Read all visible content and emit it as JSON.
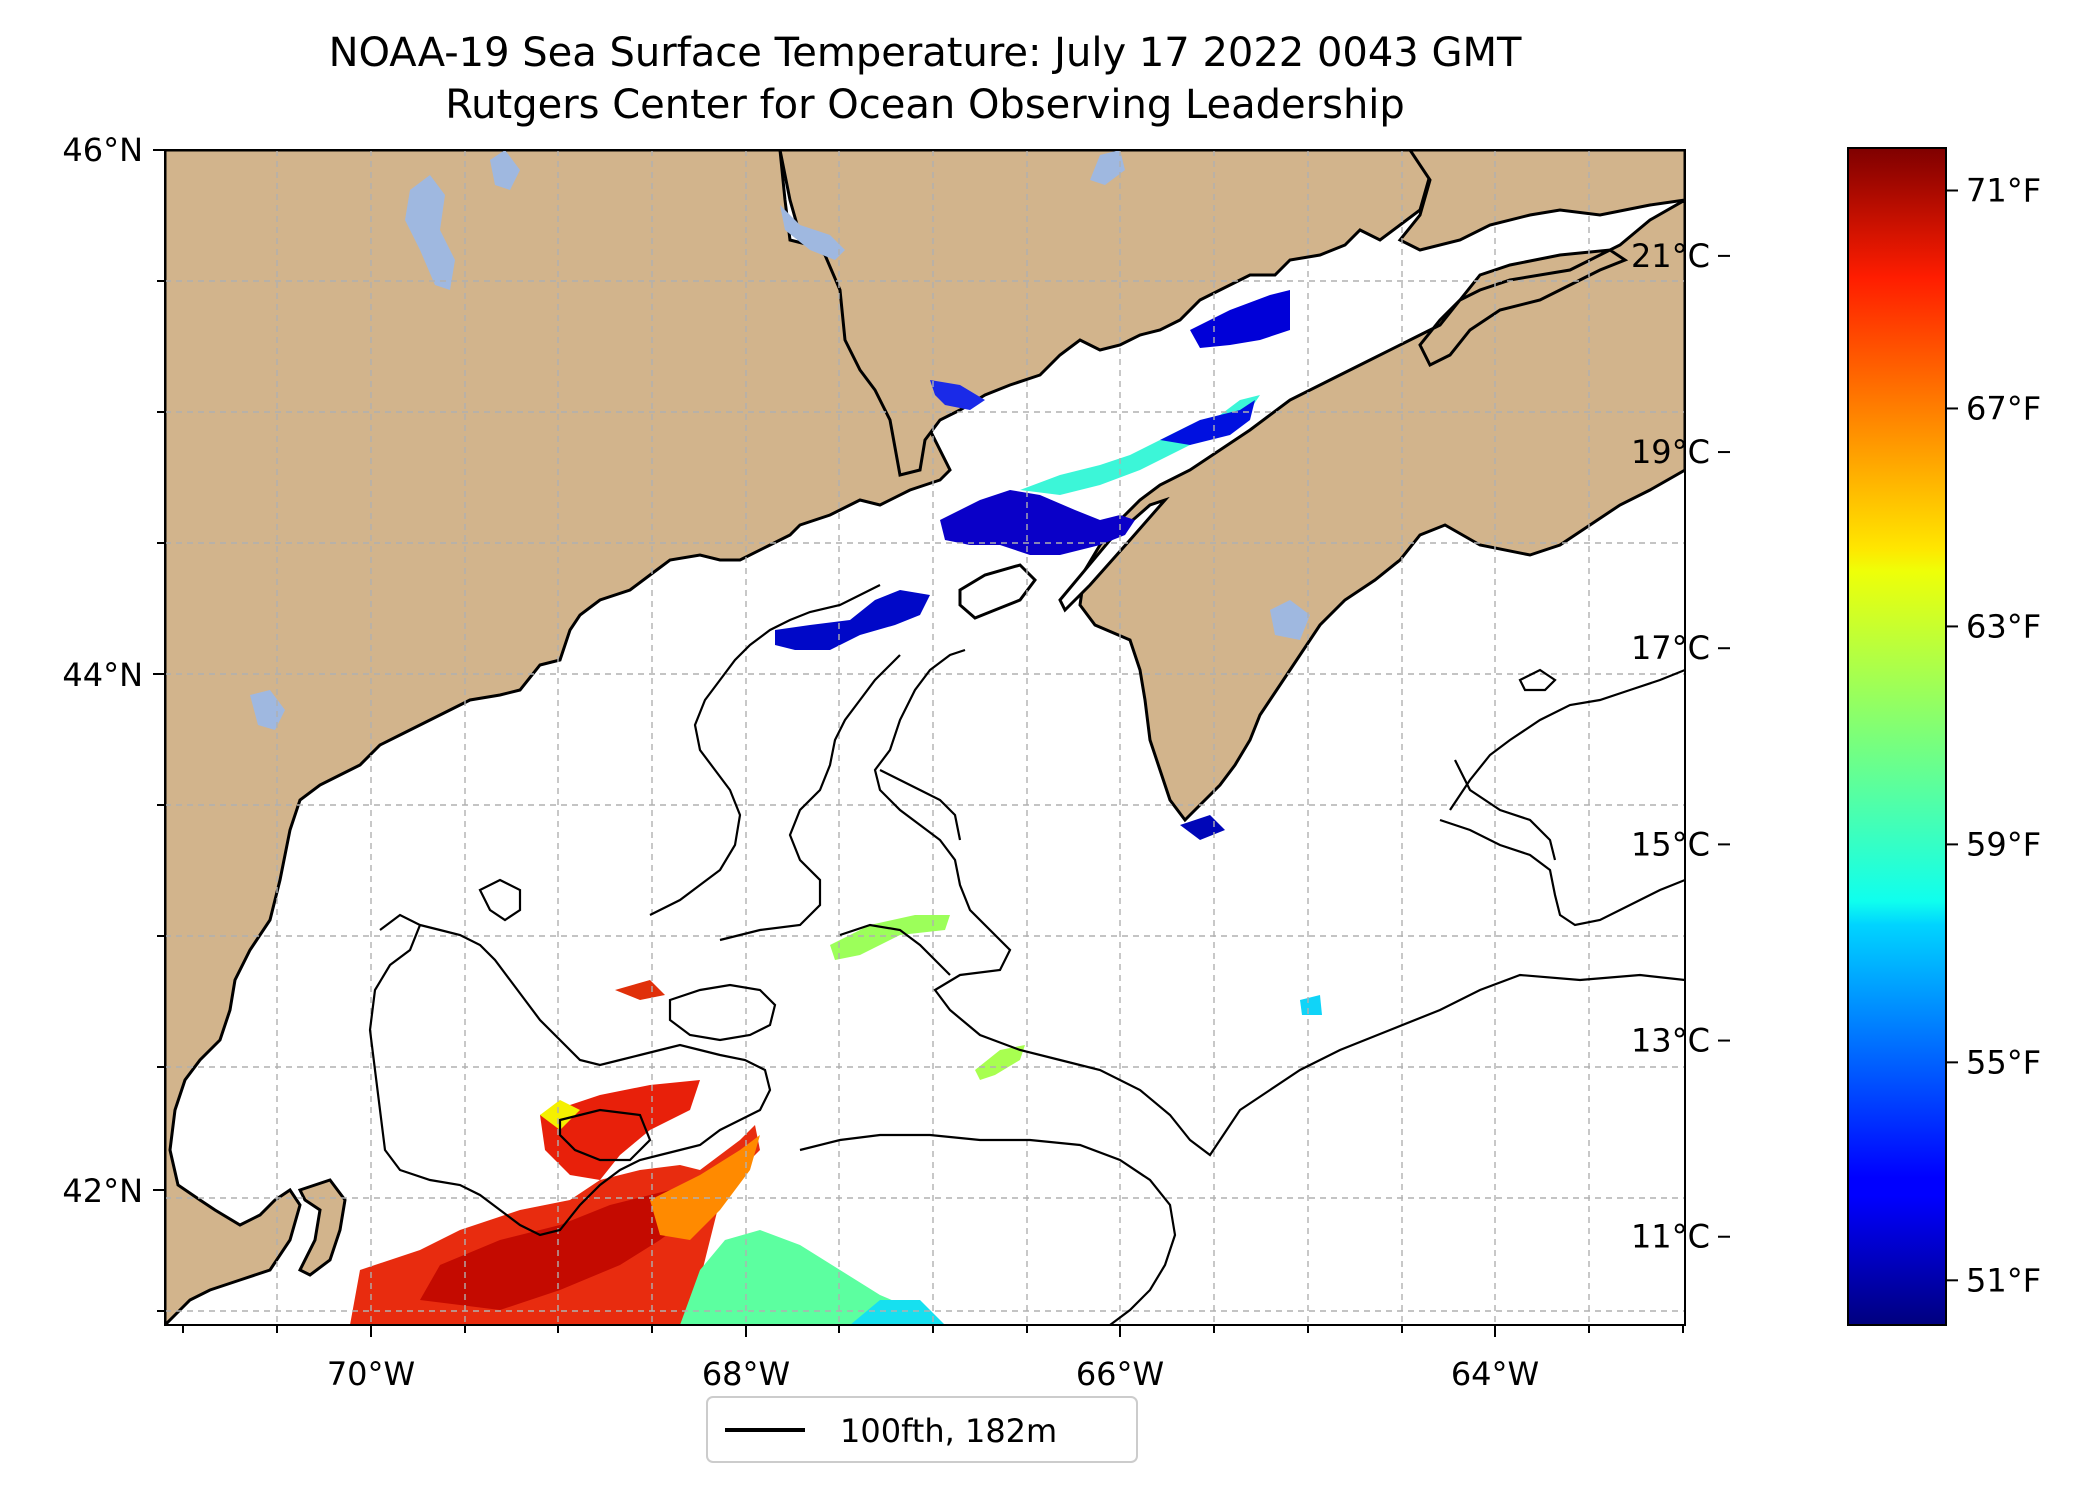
{
  "title": {
    "line1": "NOAA-19 Sea Surface Temperature: July 17 2022 0043 GMT",
    "line2": "Rutgers Center for Ocean Observing Leadership"
  },
  "map": {
    "lon_range": [
      -71.1,
      -63.0
    ],
    "lat_range": [
      41.55,
      46.0
    ],
    "lon_ticks": [
      {
        "lon": -70,
        "label": "70°W"
      },
      {
        "lon": -68,
        "label": "68°W"
      },
      {
        "lon": -66,
        "label": "66°W"
      },
      {
        "lon": -64,
        "label": "64°W"
      }
    ],
    "lat_ticks": [
      {
        "lat": 46,
        "label": "46°N"
      },
      {
        "lat": 44,
        "label": "44°N"
      },
      {
        "lat": 42,
        "label": "42°N"
      }
    ],
    "grid": true,
    "colors": {
      "land": "#d2b48c",
      "lake": "#9fb8e0",
      "ocean": "#ffffff",
      "coast": "#000000",
      "grid": "#b0b0b0"
    }
  },
  "legend": {
    "label": "100fth, 182m",
    "placement": "bottom-center"
  },
  "colorbar": {
    "colormap": "jet",
    "celsius_range": [
      10.1,
      22.1
    ],
    "celsius_ticks": [
      {
        "value": 11,
        "label": "11°C"
      },
      {
        "value": 13,
        "label": "13°C"
      },
      {
        "value": 15,
        "label": "15°C"
      },
      {
        "value": 17,
        "label": "17°C"
      },
      {
        "value": 19,
        "label": "19°C"
      },
      {
        "value": 21,
        "label": "21°C"
      }
    ],
    "fahrenheit_ticks": [
      {
        "value": 51,
        "label": "51°F"
      },
      {
        "value": 55,
        "label": "55°F"
      },
      {
        "value": 59,
        "label": "59°F"
      },
      {
        "value": 63,
        "label": "63°F"
      },
      {
        "value": 67,
        "label": "67°F"
      },
      {
        "value": 71,
        "label": "71°F"
      }
    ]
  }
}
